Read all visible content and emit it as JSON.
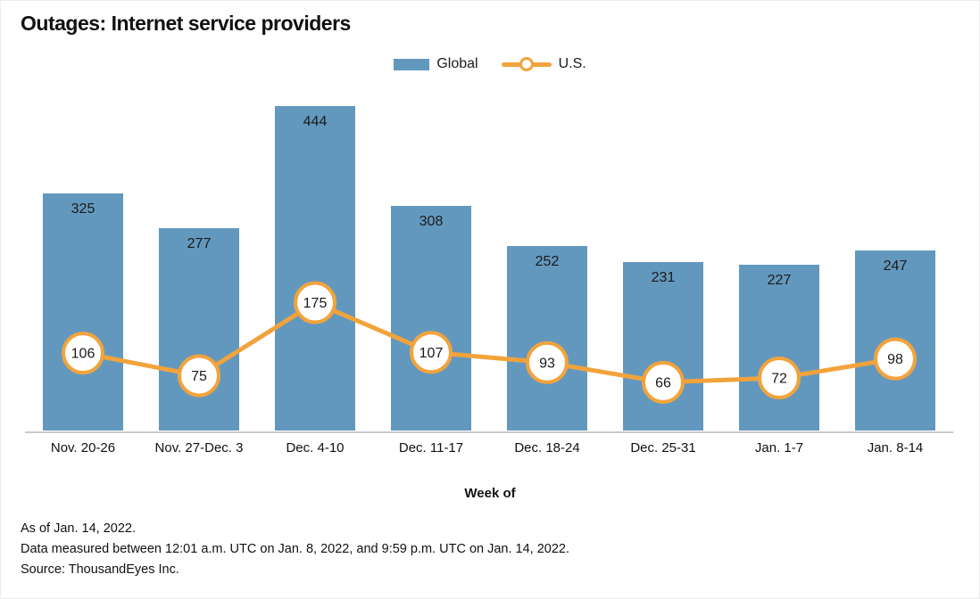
{
  "chart_data": {
    "type": "bar",
    "title": "Outages: Internet service providers",
    "xlabel": "Week of",
    "ylabel": "",
    "ylim": [
      0,
      444
    ],
    "grid": false,
    "legend_position": "top-center",
    "value_labels": "shown",
    "categories": [
      "Nov. 20-26",
      "Nov. 27-Dec. 3",
      "Dec. 4-10",
      "Dec. 11-17",
      "Dec. 18-24",
      "Dec. 25-31",
      "Jan. 1-7",
      "Jan. 8-14"
    ],
    "series": [
      {
        "name": "Global",
        "type": "bar",
        "color": "#6398be",
        "values": [
          325,
          277,
          444,
          308,
          252,
          231,
          227,
          247
        ]
      },
      {
        "name": "U.S.",
        "type": "line",
        "marker": "circle",
        "color": "#f2a33c",
        "marker_fill": "#ffffff",
        "values": [
          106,
          75,
          175,
          107,
          93,
          66,
          72,
          98
        ]
      }
    ]
  },
  "legend": {
    "global_label": "Global",
    "us_label": "U.S."
  },
  "footer": {
    "line1": "As of Jan. 14, 2022.",
    "line2": "Data measured between 12:01 a.m. UTC on Jan. 8, 2022, and 9:59 p.m. UTC on Jan. 14, 2022.",
    "line3": "Source: ThousandEyes Inc."
  },
  "colors": {
    "bar": "#6398be",
    "line": "#f2a33c",
    "marker_fill": "#ffffff",
    "axis_line": "#c9c9c9",
    "text": "#1a1a1a"
  }
}
